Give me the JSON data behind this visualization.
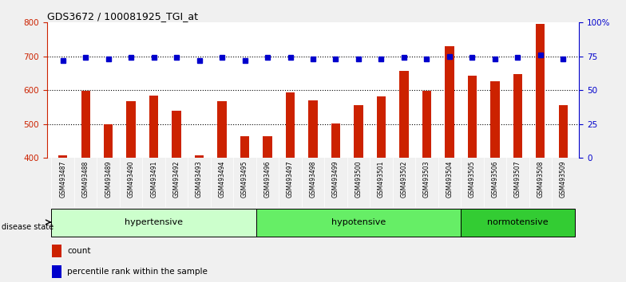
{
  "title": "GDS3672 / 100081925_TGI_at",
  "samples": [
    "GSM493487",
    "GSM493488",
    "GSM493489",
    "GSM493490",
    "GSM493491",
    "GSM493492",
    "GSM493493",
    "GSM493494",
    "GSM493495",
    "GSM493496",
    "GSM493497",
    "GSM493498",
    "GSM493499",
    "GSM493500",
    "GSM493501",
    "GSM493502",
    "GSM493503",
    "GSM493504",
    "GSM493505",
    "GSM493506",
    "GSM493507",
    "GSM493508",
    "GSM493509"
  ],
  "counts": [
    408,
    598,
    500,
    567,
    585,
    540,
    408,
    567,
    463,
    465,
    593,
    571,
    502,
    556,
    583,
    658,
    598,
    730,
    642,
    626,
    648,
    797,
    556
  ],
  "percentile_ranks": [
    72,
    74,
    73,
    74,
    74,
    74,
    72,
    74,
    72,
    74,
    74,
    73,
    73,
    73,
    73,
    74,
    73,
    75,
    74,
    73,
    74,
    76,
    73
  ],
  "groups": [
    {
      "name": "hypertensive",
      "start": 0,
      "end": 9,
      "color": "#ccffcc"
    },
    {
      "name": "hypotensive",
      "start": 9,
      "end": 18,
      "color": "#66ee66"
    },
    {
      "name": "normotensive",
      "start": 18,
      "end": 23,
      "color": "#33cc33"
    }
  ],
  "ylim_left": [
    400,
    800
  ],
  "ylim_right": [
    0,
    100
  ],
  "yticks_left": [
    400,
    500,
    600,
    700,
    800
  ],
  "yticks_right": [
    0,
    25,
    50,
    75,
    100
  ],
  "ytick_right_labels": [
    "0",
    "25",
    "50",
    "75",
    "100%"
  ],
  "bar_color": "#cc2200",
  "dot_color": "#0000cc",
  "plot_bg": "#ffffff",
  "fig_bg": "#f0f0f0",
  "xtick_bg": "#d0d0d0",
  "legend_count_color": "#cc2200",
  "legend_pct_color": "#0000cc",
  "grid_lines": [
    500,
    600,
    700
  ],
  "bar_width": 0.4
}
